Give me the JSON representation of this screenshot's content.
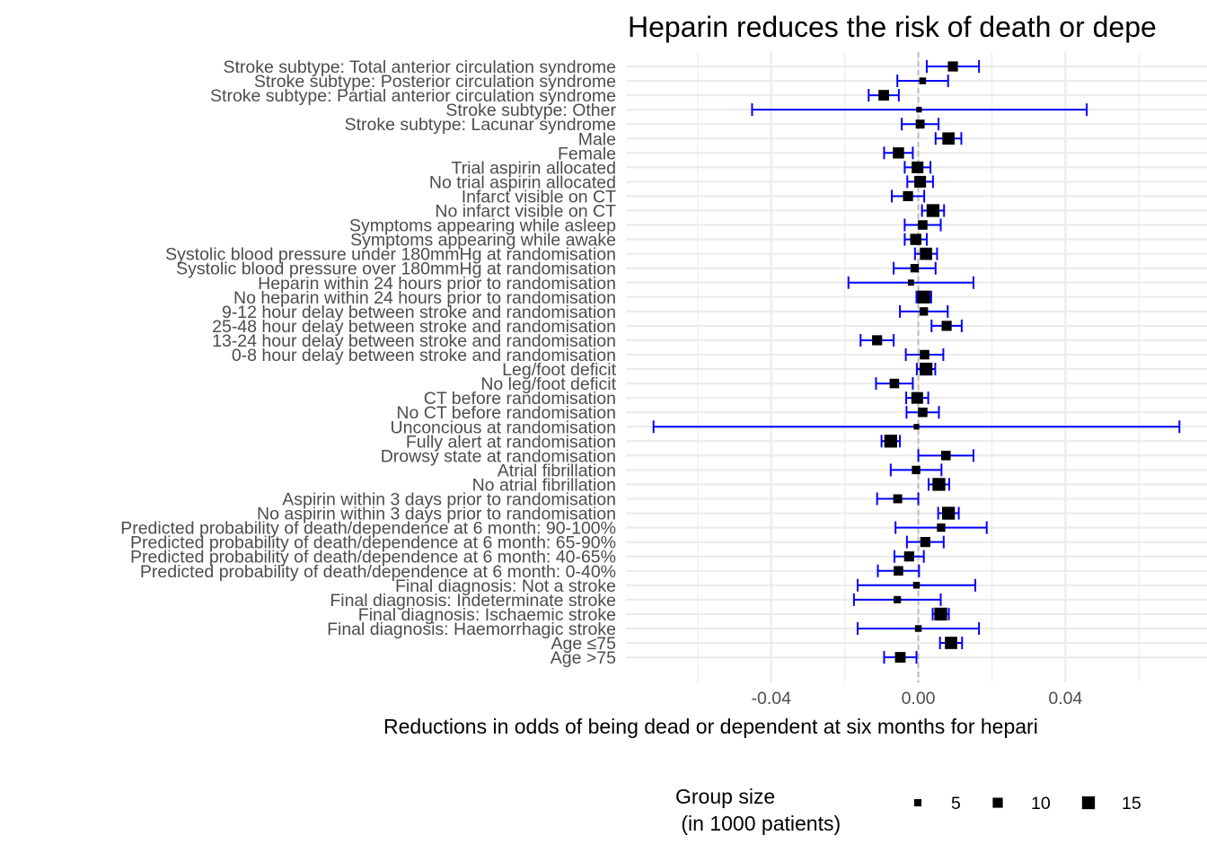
{
  "chart_data": {
    "type": "forest",
    "title": "Heparin reduces the risk of death or depe",
    "xlabel": "Reductions in odds of being dead or dependent at six months for hepari",
    "xlim": [
      -0.0795,
      0.0785
    ],
    "x_ticks": [
      {
        "value": -0.04,
        "label": "-0.04"
      },
      {
        "value": 0.0,
        "label": "0.00"
      },
      {
        "value": 0.04,
        "label": "0.04"
      }
    ],
    "minor_grid": [
      -0.06,
      -0.02,
      0.02,
      0.06
    ],
    "reference_line": 0.0,
    "errorbar_color": "#0000ff",
    "point_color": "#000000",
    "rows": [
      {
        "label": "Stroke subtype: Total anterior circulation syndrome",
        "estimate": 0.0094,
        "lower": 0.0023,
        "upper": 0.0165,
        "group_size": 10
      },
      {
        "label": "Stroke subtype: Posterior circulation syndrome",
        "estimate": 0.0012,
        "lower": -0.0057,
        "upper": 0.0081,
        "group_size": 4
      },
      {
        "label": "Stroke subtype: Partial anterior circulation syndrome",
        "estimate": -0.0094,
        "lower": -0.0135,
        "upper": -0.0053,
        "group_size": 11
      },
      {
        "label": "Stroke subtype: Other",
        "estimate": 0.0002,
        "lower": -0.0452,
        "upper": 0.0458,
        "group_size": 2
      },
      {
        "label": "Stroke subtype: Lacunar syndrome",
        "estimate": 0.0005,
        "lower": -0.0045,
        "upper": 0.0055,
        "group_size": 8
      },
      {
        "label": "Male",
        "estimate": 0.0082,
        "lower": 0.0047,
        "upper": 0.0117,
        "group_size": 14
      },
      {
        "label": "Female",
        "estimate": -0.0054,
        "lower": -0.0093,
        "upper": -0.0015,
        "group_size": 12
      },
      {
        "label": "Trial aspirin allocated",
        "estimate": -0.0002,
        "lower": -0.0037,
        "upper": 0.0033,
        "group_size": 13
      },
      {
        "label": "No trial aspirin allocated",
        "estimate": 0.0005,
        "lower": -0.003,
        "upper": 0.004,
        "group_size": 13
      },
      {
        "label": "Infarct visible on CT",
        "estimate": -0.0028,
        "lower": -0.0072,
        "upper": 0.0016,
        "group_size": 10
      },
      {
        "label": "No infarct visible on CT",
        "estimate": 0.004,
        "lower": 0.001,
        "upper": 0.007,
        "group_size": 15
      },
      {
        "label": "Symptoms appearing while asleep",
        "estimate": 0.0012,
        "lower": -0.0037,
        "upper": 0.0061,
        "group_size": 9
      },
      {
        "label": "Symptoms appearing while awake",
        "estimate": -0.0007,
        "lower": -0.0037,
        "upper": 0.0023,
        "group_size": 12
      },
      {
        "label": "Systolic blood pressure under 180mmHg at randomisation",
        "estimate": 0.0021,
        "lower": -0.0009,
        "upper": 0.0051,
        "group_size": 14
      },
      {
        "label": "Systolic blood pressure over 180mmHg at randomisation",
        "estimate": -0.001,
        "lower": -0.0067,
        "upper": 0.0047,
        "group_size": 7
      },
      {
        "label": "Heparin within 24 hours prior to randomisation",
        "estimate": -0.002,
        "lower": -0.019,
        "upper": 0.015,
        "group_size": 3
      },
      {
        "label": "No heparin within 24 hours prior to randomisation",
        "estimate": 0.0015,
        "lower": -0.0005,
        "upper": 0.0035,
        "group_size": 15
      },
      {
        "label": "9-12 hour delay between stroke and randomisation",
        "estimate": 0.0015,
        "lower": -0.005,
        "upper": 0.008,
        "group_size": 7
      },
      {
        "label": "25-48 hour delay between stroke and randomisation",
        "estimate": 0.0077,
        "lower": 0.0036,
        "upper": 0.0118,
        "group_size": 10
      },
      {
        "label": "13-24 hour delay between stroke and randomisation",
        "estimate": -0.0112,
        "lower": -0.0157,
        "upper": -0.0067,
        "group_size": 10
      },
      {
        "label": "0-8 hour delay between stroke and randomisation",
        "estimate": 0.0017,
        "lower": -0.0034,
        "upper": 0.0068,
        "group_size": 9
      },
      {
        "label": "Leg/foot deficit",
        "estimate": 0.0021,
        "lower": -0.0004,
        "upper": 0.0046,
        "group_size": 15
      },
      {
        "label": "No leg/foot deficit",
        "estimate": -0.0065,
        "lower": -0.0115,
        "upper": -0.0015,
        "group_size": 9
      },
      {
        "label": "CT before randomisation",
        "estimate": -0.0003,
        "lower": -0.0033,
        "upper": 0.0027,
        "group_size": 13
      },
      {
        "label": "No CT before randomisation",
        "estimate": 0.0012,
        "lower": -0.0032,
        "upper": 0.0056,
        "group_size": 9
      },
      {
        "label": "Unconcious at randomisation",
        "estimate": -0.0005,
        "lower": -0.072,
        "upper": 0.071,
        "group_size": 2
      },
      {
        "label": "Fully alert at randomisation",
        "estimate": -0.0075,
        "lower": -0.01,
        "upper": -0.005,
        "group_size": 15
      },
      {
        "label": "Drowsy state at randomisation",
        "estimate": 0.0075,
        "lower": 0.0,
        "upper": 0.015,
        "group_size": 9
      },
      {
        "label": "Atrial fibrillation",
        "estimate": -0.0006,
        "lower": -0.0075,
        "upper": 0.0063,
        "group_size": 7
      },
      {
        "label": "No atrial fibrillation",
        "estimate": 0.0056,
        "lower": 0.0028,
        "upper": 0.0084,
        "group_size": 15
      },
      {
        "label": "Aspirin within 3 days prior to randomisation",
        "estimate": -0.0056,
        "lower": -0.0112,
        "upper": 0.0,
        "group_size": 8
      },
      {
        "label": "No aspirin within 3 days prior to randomisation",
        "estimate": 0.0082,
        "lower": 0.0054,
        "upper": 0.011,
        "group_size": 15
      },
      {
        "label": "Predicted probability of death/dependence at 6 month: 90-100%",
        "estimate": 0.0062,
        "lower": -0.0062,
        "upper": 0.0186,
        "group_size": 7
      },
      {
        "label": "Predicted probability of death/dependence at 6 month: 65-90%",
        "estimate": 0.0019,
        "lower": -0.0031,
        "upper": 0.0069,
        "group_size": 10
      },
      {
        "label": "Predicted probability of death/dependence at 6 month: 40-65%",
        "estimate": -0.0025,
        "lower": -0.0065,
        "upper": 0.0015,
        "group_size": 10
      },
      {
        "label": "Predicted probability of death/dependence at 6 month: 0-40%",
        "estimate": -0.0054,
        "lower": -0.011,
        "upper": 0.0002,
        "group_size": 9
      },
      {
        "label": "Final diagnosis: Not a stroke",
        "estimate": -0.0005,
        "lower": -0.0165,
        "upper": 0.0155,
        "group_size": 4
      },
      {
        "label": "Final diagnosis: Indeterminate stroke",
        "estimate": -0.0057,
        "lower": -0.0175,
        "upper": 0.0061,
        "group_size": 5
      },
      {
        "label": "Final diagnosis: Ischaemic stroke",
        "estimate": 0.0061,
        "lower": 0.0039,
        "upper": 0.0083,
        "group_size": 15
      },
      {
        "label": "Final diagnosis: Haemorrhagic stroke",
        "estimate": 0.0,
        "lower": -0.0165,
        "upper": 0.0165,
        "group_size": 4
      },
      {
        "label": "Age ≤75",
        "estimate": 0.0089,
        "lower": 0.0059,
        "upper": 0.0119,
        "group_size": 14
      },
      {
        "label": "Age >75",
        "estimate": -0.0049,
        "lower": -0.0093,
        "upper": -0.0005,
        "group_size": 11
      }
    ],
    "legend": {
      "title_line1": "Group size",
      "title_line2": " (in 1000 patients)",
      "items": [
        {
          "label": "5",
          "size": 5
        },
        {
          "label": "10",
          "size": 10
        },
        {
          "label": "15",
          "size": 15
        }
      ]
    }
  }
}
